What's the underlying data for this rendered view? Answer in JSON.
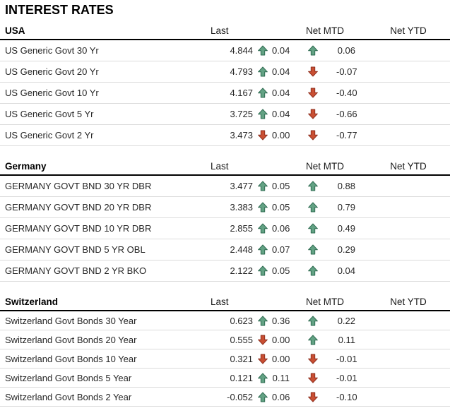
{
  "chart_data": {
    "type": "table",
    "title": "INTEREST RATES",
    "columns": {
      "last": "Last",
      "net_mtd": "Net MTD",
      "net_ytd": "Net YTD"
    },
    "sections": [
      {
        "name": "USA",
        "rows": [
          {
            "label": "US Generic Govt 30 Yr",
            "last": "4.844",
            "net_mtd_dir": "up",
            "net_mtd": "0.04",
            "net_ytd_dir": "up",
            "net_ytd": "0.06"
          },
          {
            "label": "US Generic Govt 20 Yr",
            "last": "4.793",
            "net_mtd_dir": "up",
            "net_mtd": "0.04",
            "net_ytd_dir": "down",
            "net_ytd": "-0.07"
          },
          {
            "label": "US Generic Govt 10 Yr",
            "last": "4.167",
            "net_mtd_dir": "up",
            "net_mtd": "0.04",
            "net_ytd_dir": "down",
            "net_ytd": "-0.40"
          },
          {
            "label": "US Generic Govt 5 Yr",
            "last": "3.725",
            "net_mtd_dir": "up",
            "net_mtd": "0.04",
            "net_ytd_dir": "down",
            "net_ytd": "-0.66"
          },
          {
            "label": "US Generic Govt 2 Yr",
            "last": "3.473",
            "net_mtd_dir": "down",
            "net_mtd": "0.00",
            "net_ytd_dir": "down",
            "net_ytd": "-0.77"
          }
        ]
      },
      {
        "name": "Germany",
        "rows": [
          {
            "label": "GERMANY GOVT BND 30 YR DBR",
            "last": "3.477",
            "net_mtd_dir": "up",
            "net_mtd": "0.05",
            "net_ytd_dir": "up",
            "net_ytd": "0.88"
          },
          {
            "label": "GERMANY GOVT BND 20 YR DBR",
            "last": "3.383",
            "net_mtd_dir": "up",
            "net_mtd": "0.05",
            "net_ytd_dir": "up",
            "net_ytd": "0.79"
          },
          {
            "label": "GERMANY GOVT BND 10 YR DBR",
            "last": "2.855",
            "net_mtd_dir": "up",
            "net_mtd": "0.06",
            "net_ytd_dir": "up",
            "net_ytd": "0.49"
          },
          {
            "label": "GERMANY GOVT BND 5 YR OBL",
            "last": "2.448",
            "net_mtd_dir": "up",
            "net_mtd": "0.07",
            "net_ytd_dir": "up",
            "net_ytd": "0.29"
          },
          {
            "label": "GERMANY GOVT BND 2 YR BKO",
            "last": "2.122",
            "net_mtd_dir": "up",
            "net_mtd": "0.05",
            "net_ytd_dir": "up",
            "net_ytd": "0.04"
          }
        ]
      },
      {
        "name": "Switzerland",
        "rows": [
          {
            "label": "Switzerland Govt Bonds 30 Year",
            "last": "0.623",
            "net_mtd_dir": "up",
            "net_mtd": "0.36",
            "net_ytd_dir": "up",
            "net_ytd": "0.22"
          },
          {
            "label": "Switzerland Govt Bonds 20 Year",
            "last": "0.555",
            "net_mtd_dir": "down",
            "net_mtd": "0.00",
            "net_ytd_dir": "up",
            "net_ytd": "0.11"
          },
          {
            "label": "Switzerland Govt Bonds 10 Year",
            "last": "0.321",
            "net_mtd_dir": "down",
            "net_mtd": "0.00",
            "net_ytd_dir": "down",
            "net_ytd": "-0.01"
          },
          {
            "label": "Switzerland Govt Bonds 5 Year",
            "last": "0.121",
            "net_mtd_dir": "up",
            "net_mtd": "0.11",
            "net_ytd_dir": "down",
            "net_ytd": "-0.01"
          },
          {
            "label": "Switzerland Govt Bonds 2 Year",
            "last": "-0.052",
            "net_mtd_dir": "up",
            "net_mtd": "0.06",
            "net_ytd_dir": "down",
            "net_ytd": "-0.10"
          }
        ]
      }
    ]
  },
  "colors": {
    "up": "#63A284",
    "up_stroke": "#2E6B51",
    "down": "#C94F33",
    "down_stroke": "#8E2F1E"
  }
}
